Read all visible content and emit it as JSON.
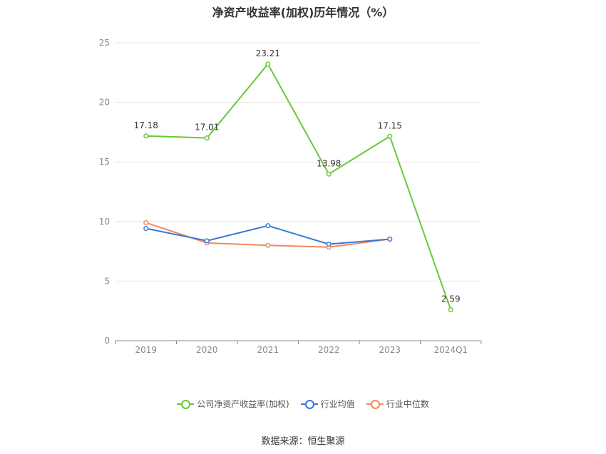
{
  "title": "净资产收益率(加权)历年情况（%）",
  "source": "数据来源：恒生聚源",
  "chart_data": {
    "type": "line",
    "categories": [
      "2019",
      "2020",
      "2021",
      "2022",
      "2023",
      "2024Q1"
    ],
    "ylim": [
      0,
      25
    ],
    "yticks": [
      0,
      5,
      10,
      15,
      20,
      25
    ],
    "grid": true,
    "legend_position": "bottom",
    "series": [
      {
        "name": "公司净资产收益率(加权)",
        "color": "#66c93a",
        "values": [
          17.18,
          17.01,
          23.21,
          13.98,
          17.15,
          2.59
        ],
        "labels": [
          "17.18",
          "17.01",
          "23.21",
          "13.98",
          "17.15",
          "2.59"
        ]
      },
      {
        "name": "行业均值",
        "color": "#3a78d6",
        "values": [
          9.42,
          8.38,
          9.65,
          8.1,
          8.52,
          null
        ],
        "labels": null
      },
      {
        "name": "行业中位数",
        "color": "#f08a5d",
        "values": [
          9.9,
          8.2,
          8.0,
          7.85,
          8.52,
          null
        ],
        "labels": null
      }
    ]
  }
}
